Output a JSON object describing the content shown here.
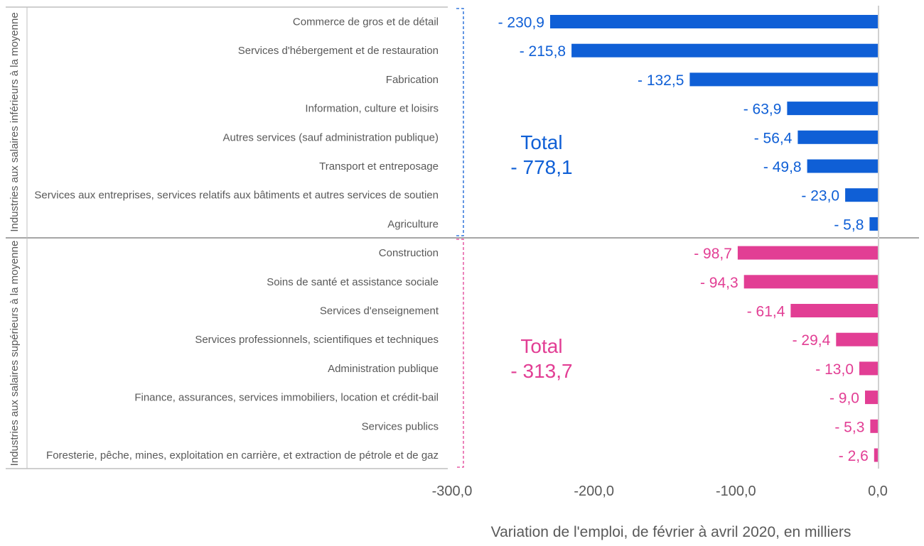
{
  "chart_data": {
    "type": "bar",
    "orientation": "horizontal",
    "xlabel": "Variation de l'emploi, de février à avril 2020, en milliers",
    "xlim": [
      -300,
      0
    ],
    "x_ticks": [
      "-300,0",
      "-200,0",
      "-100,0",
      "0,0"
    ],
    "x_tick_values": [
      -300,
      -200,
      -100,
      0
    ],
    "grid": false,
    "colors": {
      "lower": "#0f5fd6",
      "upper": "#e23e94"
    },
    "groups": [
      {
        "name": "Industries aux salaires inférieurs à la moyenne",
        "color_key": "lower",
        "total_label": "Total",
        "total_value_label": "- 778,1",
        "categories": [
          "Commerce de gros et de détail",
          "Services d'hébergement et de restauration",
          "Fabrication",
          "Information, culture et loisirs",
          "Autres services (sauf administration publique)",
          "Transport et entreposage",
          "Services aux entreprises, services relatifs aux bâtiments et autres services de soutien",
          "Agriculture"
        ],
        "values": [
          -230.9,
          -215.8,
          -132.5,
          -63.9,
          -56.4,
          -49.8,
          -23.0,
          -5.8
        ],
        "value_labels": [
          "- 230,9",
          "- 215,8",
          "- 132,5",
          "- 63,9",
          "- 56,4",
          "- 49,8",
          "- 23,0",
          "- 5,8"
        ]
      },
      {
        "name": "Industries aux salaires supérieurs à la moyenne",
        "color_key": "upper",
        "total_label": "Total",
        "total_value_label": "- 313,7",
        "categories": [
          "Construction",
          "Soins de santé et assistance sociale",
          "Services d'enseignement",
          "Services professionnels, scientifiques et techniques",
          "Administration publique",
          "Finance, assurances, services immobiliers, location et crédit-bail",
          "Services publics",
          "Foresterie, pêche, mines, exploitation en carrière, et extraction de pétrole et de gaz"
        ],
        "values": [
          -98.7,
          -94.3,
          -61.4,
          -29.4,
          -13.0,
          -9.0,
          -5.3,
          -2.6
        ],
        "value_labels": [
          "- 98,7",
          "- 94,3",
          "- 61,4",
          "- 29,4",
          "- 13,0",
          "- 9,0",
          "- 5,3",
          "- 2,6"
        ]
      }
    ]
  }
}
